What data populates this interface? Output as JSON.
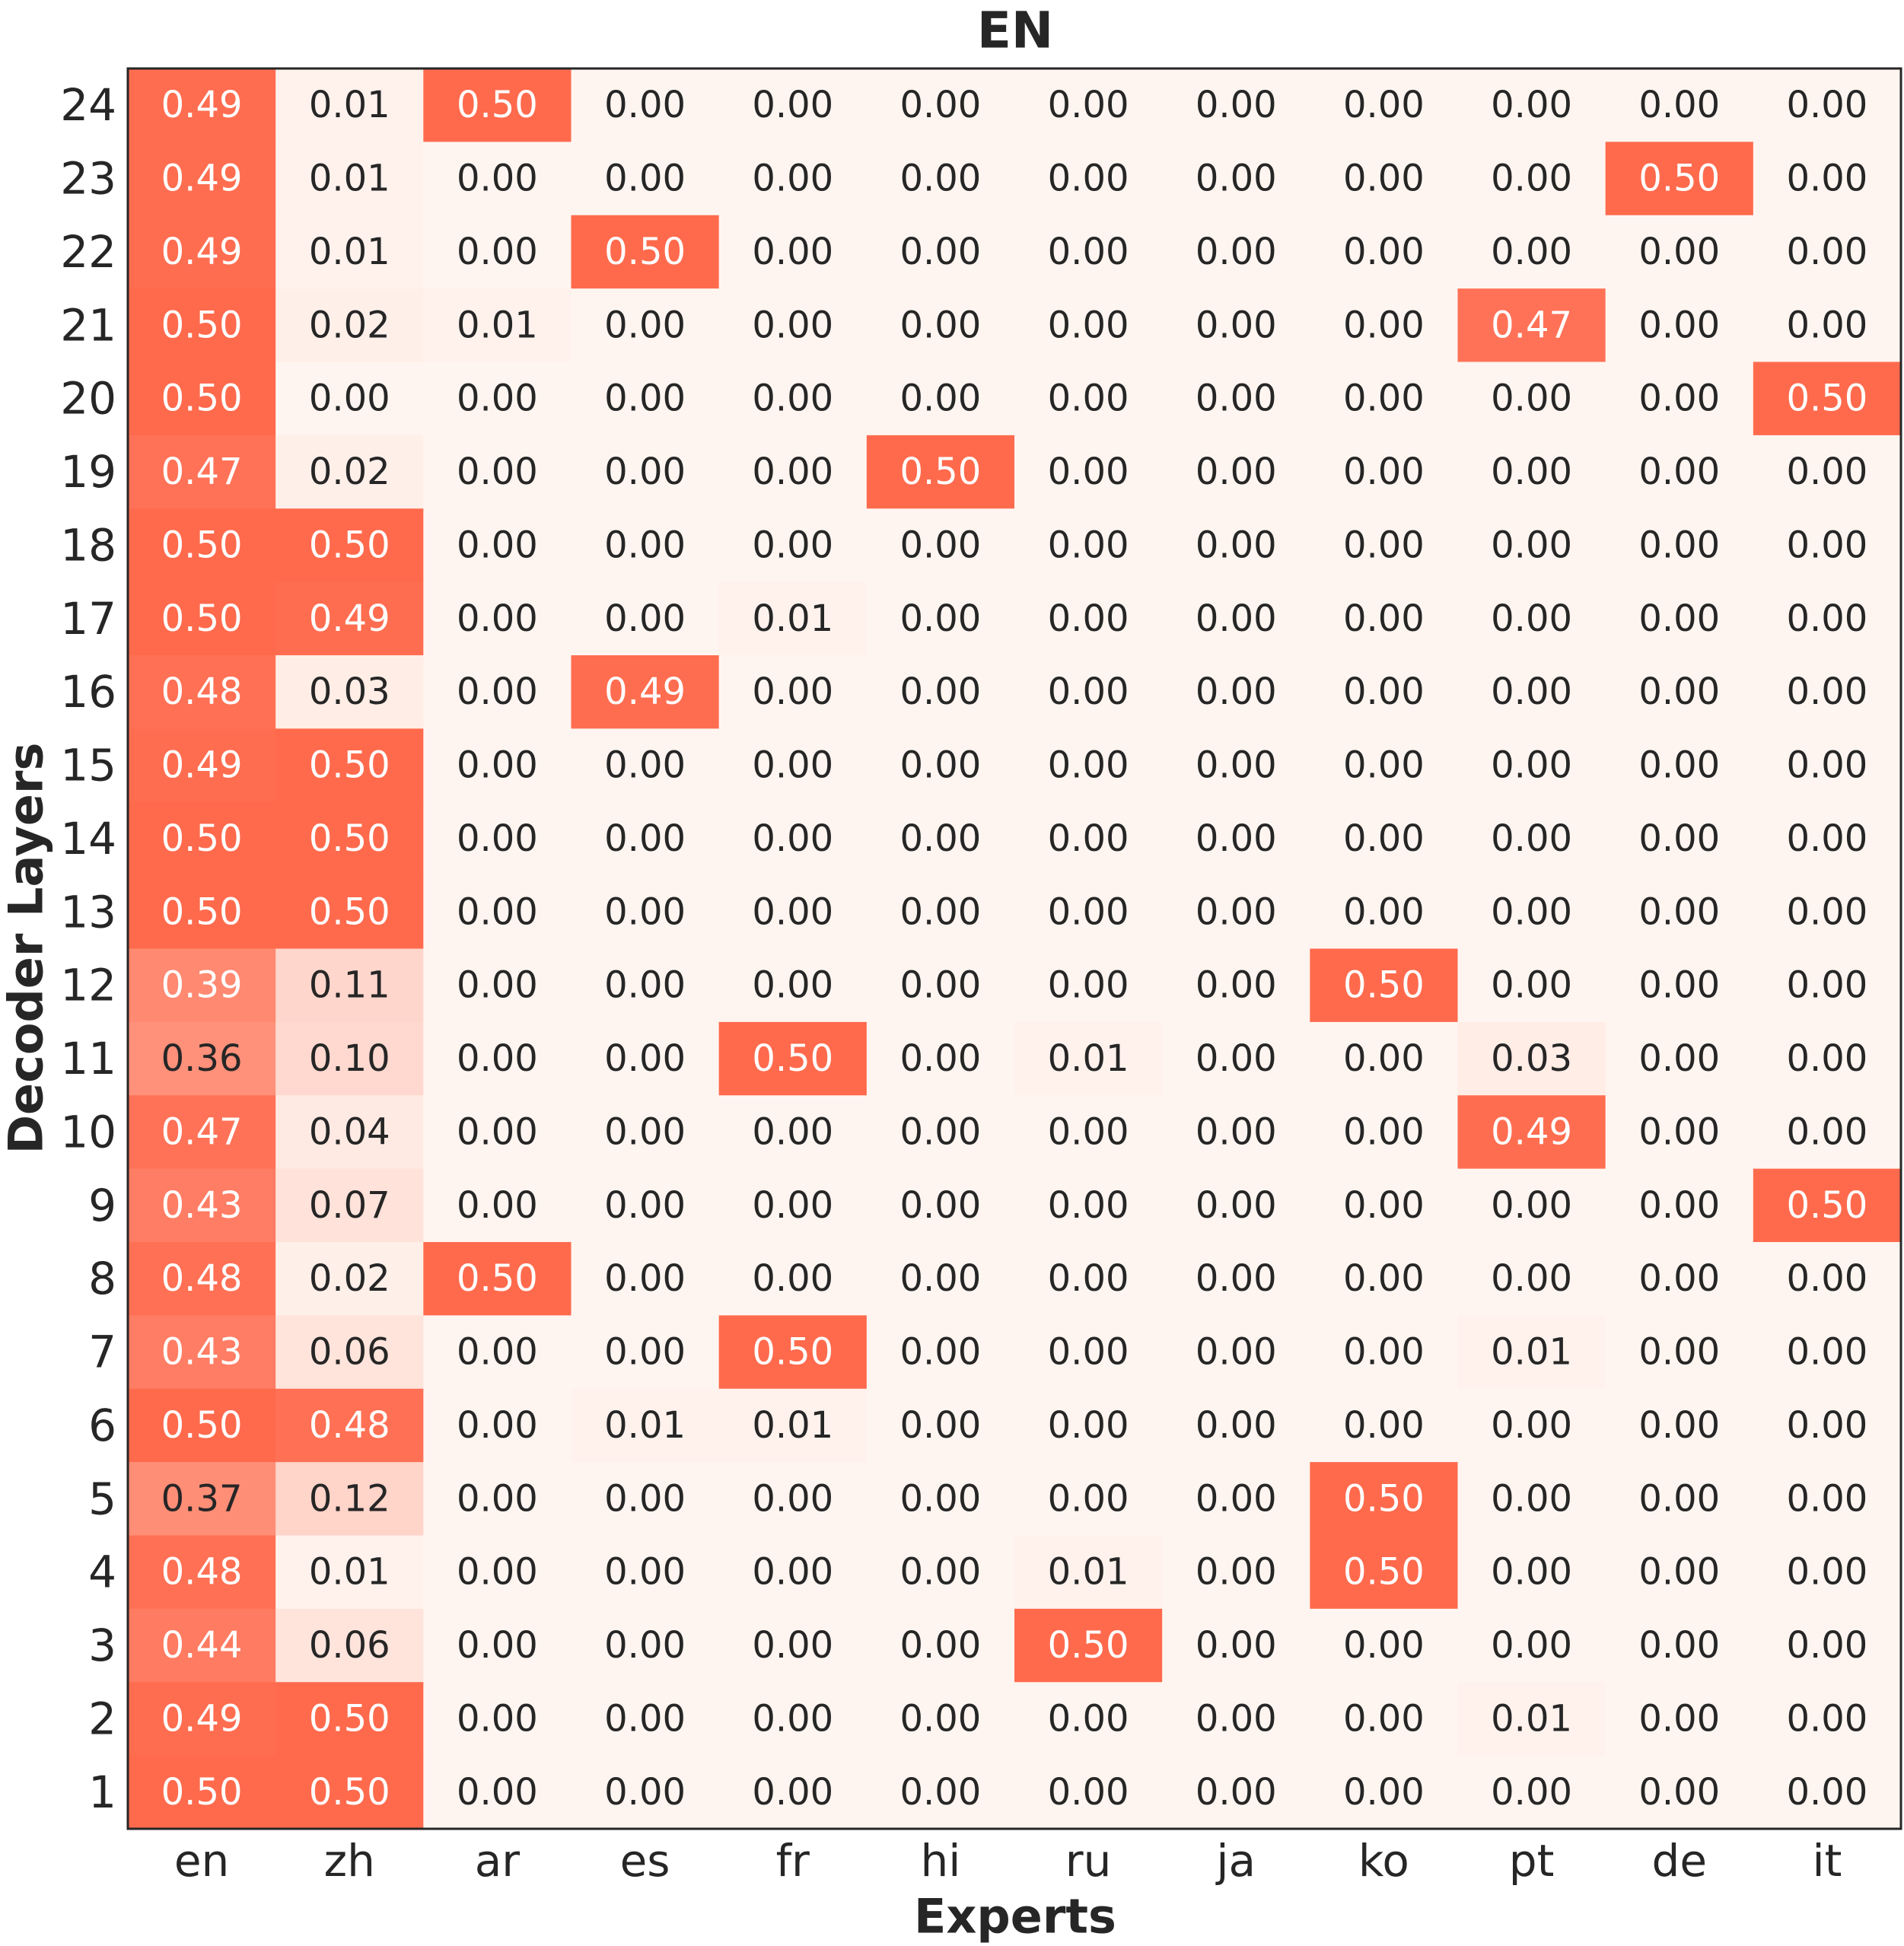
{
  "chart_data": {
    "type": "heatmap",
    "title": "EN",
    "xlabel": "Experts",
    "ylabel": "Decoder Layers",
    "x_categories": [
      "en",
      "zh",
      "ar",
      "es",
      "fr",
      "hi",
      "ru",
      "ja",
      "ko",
      "pt",
      "de",
      "it"
    ],
    "y_categories": [
      "24",
      "23",
      "22",
      "21",
      "20",
      "19",
      "18",
      "17",
      "16",
      "15",
      "14",
      "13",
      "12",
      "11",
      "10",
      "9",
      "8",
      "7",
      "6",
      "5",
      "4",
      "3",
      "2",
      "1"
    ],
    "values": [
      [
        0.49,
        0.01,
        0.5,
        0.0,
        0.0,
        0.0,
        0.0,
        0.0,
        0.0,
        0.0,
        0.0,
        0.0
      ],
      [
        0.49,
        0.01,
        0.0,
        0.0,
        0.0,
        0.0,
        0.0,
        0.0,
        0.0,
        0.0,
        0.5,
        0.0
      ],
      [
        0.49,
        0.01,
        0.0,
        0.5,
        0.0,
        0.0,
        0.0,
        0.0,
        0.0,
        0.0,
        0.0,
        0.0
      ],
      [
        0.5,
        0.02,
        0.01,
        0.0,
        0.0,
        0.0,
        0.0,
        0.0,
        0.0,
        0.47,
        0.0,
        0.0
      ],
      [
        0.5,
        0.0,
        0.0,
        0.0,
        0.0,
        0.0,
        0.0,
        0.0,
        0.0,
        0.0,
        0.0,
        0.5
      ],
      [
        0.47,
        0.02,
        0.0,
        0.0,
        0.0,
        0.5,
        0.0,
        0.0,
        0.0,
        0.0,
        0.0,
        0.0
      ],
      [
        0.5,
        0.5,
        0.0,
        0.0,
        0.0,
        0.0,
        0.0,
        0.0,
        0.0,
        0.0,
        0.0,
        0.0
      ],
      [
        0.5,
        0.49,
        0.0,
        0.0,
        0.01,
        0.0,
        0.0,
        0.0,
        0.0,
        0.0,
        0.0,
        0.0
      ],
      [
        0.48,
        0.03,
        0.0,
        0.49,
        0.0,
        0.0,
        0.0,
        0.0,
        0.0,
        0.0,
        0.0,
        0.0
      ],
      [
        0.49,
        0.5,
        0.0,
        0.0,
        0.0,
        0.0,
        0.0,
        0.0,
        0.0,
        0.0,
        0.0,
        0.0
      ],
      [
        0.5,
        0.5,
        0.0,
        0.0,
        0.0,
        0.0,
        0.0,
        0.0,
        0.0,
        0.0,
        0.0,
        0.0
      ],
      [
        0.5,
        0.5,
        0.0,
        0.0,
        0.0,
        0.0,
        0.0,
        0.0,
        0.0,
        0.0,
        0.0,
        0.0
      ],
      [
        0.39,
        0.11,
        0.0,
        0.0,
        0.0,
        0.0,
        0.0,
        0.0,
        0.5,
        0.0,
        0.0,
        0.0
      ],
      [
        0.36,
        0.1,
        0.0,
        0.0,
        0.5,
        0.0,
        0.01,
        0.0,
        0.0,
        0.03,
        0.0,
        0.0
      ],
      [
        0.47,
        0.04,
        0.0,
        0.0,
        0.0,
        0.0,
        0.0,
        0.0,
        0.0,
        0.49,
        0.0,
        0.0
      ],
      [
        0.43,
        0.07,
        0.0,
        0.0,
        0.0,
        0.0,
        0.0,
        0.0,
        0.0,
        0.0,
        0.0,
        0.5
      ],
      [
        0.48,
        0.02,
        0.5,
        0.0,
        0.0,
        0.0,
        0.0,
        0.0,
        0.0,
        0.0,
        0.0,
        0.0
      ],
      [
        0.43,
        0.06,
        0.0,
        0.0,
        0.5,
        0.0,
        0.0,
        0.0,
        0.0,
        0.01,
        0.0,
        0.0
      ],
      [
        0.5,
        0.48,
        0.0,
        0.01,
        0.01,
        0.0,
        0.0,
        0.0,
        0.0,
        0.0,
        0.0,
        0.0
      ],
      [
        0.37,
        0.12,
        0.0,
        0.0,
        0.0,
        0.0,
        0.0,
        0.0,
        0.5,
        0.0,
        0.0,
        0.0
      ],
      [
        0.48,
        0.01,
        0.0,
        0.0,
        0.0,
        0.0,
        0.01,
        0.0,
        0.5,
        0.0,
        0.0,
        0.0
      ],
      [
        0.44,
        0.06,
        0.0,
        0.0,
        0.0,
        0.0,
        0.5,
        0.0,
        0.0,
        0.0,
        0.0,
        0.0
      ],
      [
        0.49,
        0.5,
        0.0,
        0.0,
        0.0,
        0.0,
        0.0,
        0.0,
        0.0,
        0.01,
        0.0,
        0.0
      ],
      [
        0.5,
        0.5,
        0.0,
        0.0,
        0.0,
        0.0,
        0.0,
        0.0,
        0.0,
        0.0,
        0.0,
        0.0
      ]
    ],
    "value_format": "2 decimals",
    "vmin": 0.0,
    "vmax": 0.5,
    "colormap": {
      "low": "#fff5f0",
      "high": "#ff6a4d"
    },
    "text_colors": {
      "dark": "#262626",
      "light": "#ffffff"
    },
    "border_color": "#262626",
    "grid": false,
    "legend": "none"
  }
}
